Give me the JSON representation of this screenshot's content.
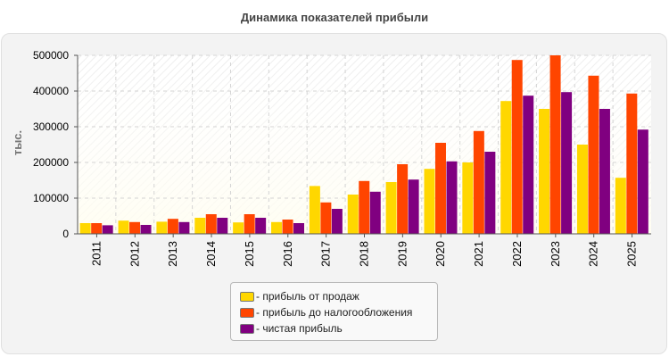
{
  "chart_data": {
    "type": "bar",
    "title": "Динамика показателей прибыли",
    "ylabel": "тыс.",
    "xlabel": "",
    "ylim": [
      0,
      500000
    ],
    "yticks": [
      "0",
      "100000",
      "200000",
      "300000",
      "400000",
      "500000"
    ],
    "categories": [
      "2011",
      "2012",
      "2013",
      "2014",
      "2015",
      "2016",
      "2017",
      "2018",
      "2019",
      "2020",
      "2021",
      "2022",
      "2023",
      "2024",
      "2025"
    ],
    "grid": true,
    "legend_position": "bottom-center",
    "series": [
      {
        "name": "- прибыль от продаж",
        "color": "#ffd700",
        "values": [
          30000,
          37000,
          34000,
          45000,
          32000,
          33000,
          134000,
          110000,
          145000,
          182000,
          200000,
          372000,
          350000,
          250000,
          157000
        ]
      },
      {
        "name": "- прибыль до налогообложения",
        "color": "#ff4500",
        "values": [
          30000,
          33000,
          42000,
          55000,
          55000,
          40000,
          88000,
          148000,
          195000,
          255000,
          288000,
          487000,
          500000,
          443000,
          393000
        ]
      },
      {
        "name": "- чистая прибыль",
        "color": "#800080",
        "values": [
          24000,
          25000,
          33000,
          45000,
          45000,
          30000,
          70000,
          118000,
          152000,
          203000,
          230000,
          387000,
          397000,
          350000,
          292000
        ]
      }
    ]
  }
}
